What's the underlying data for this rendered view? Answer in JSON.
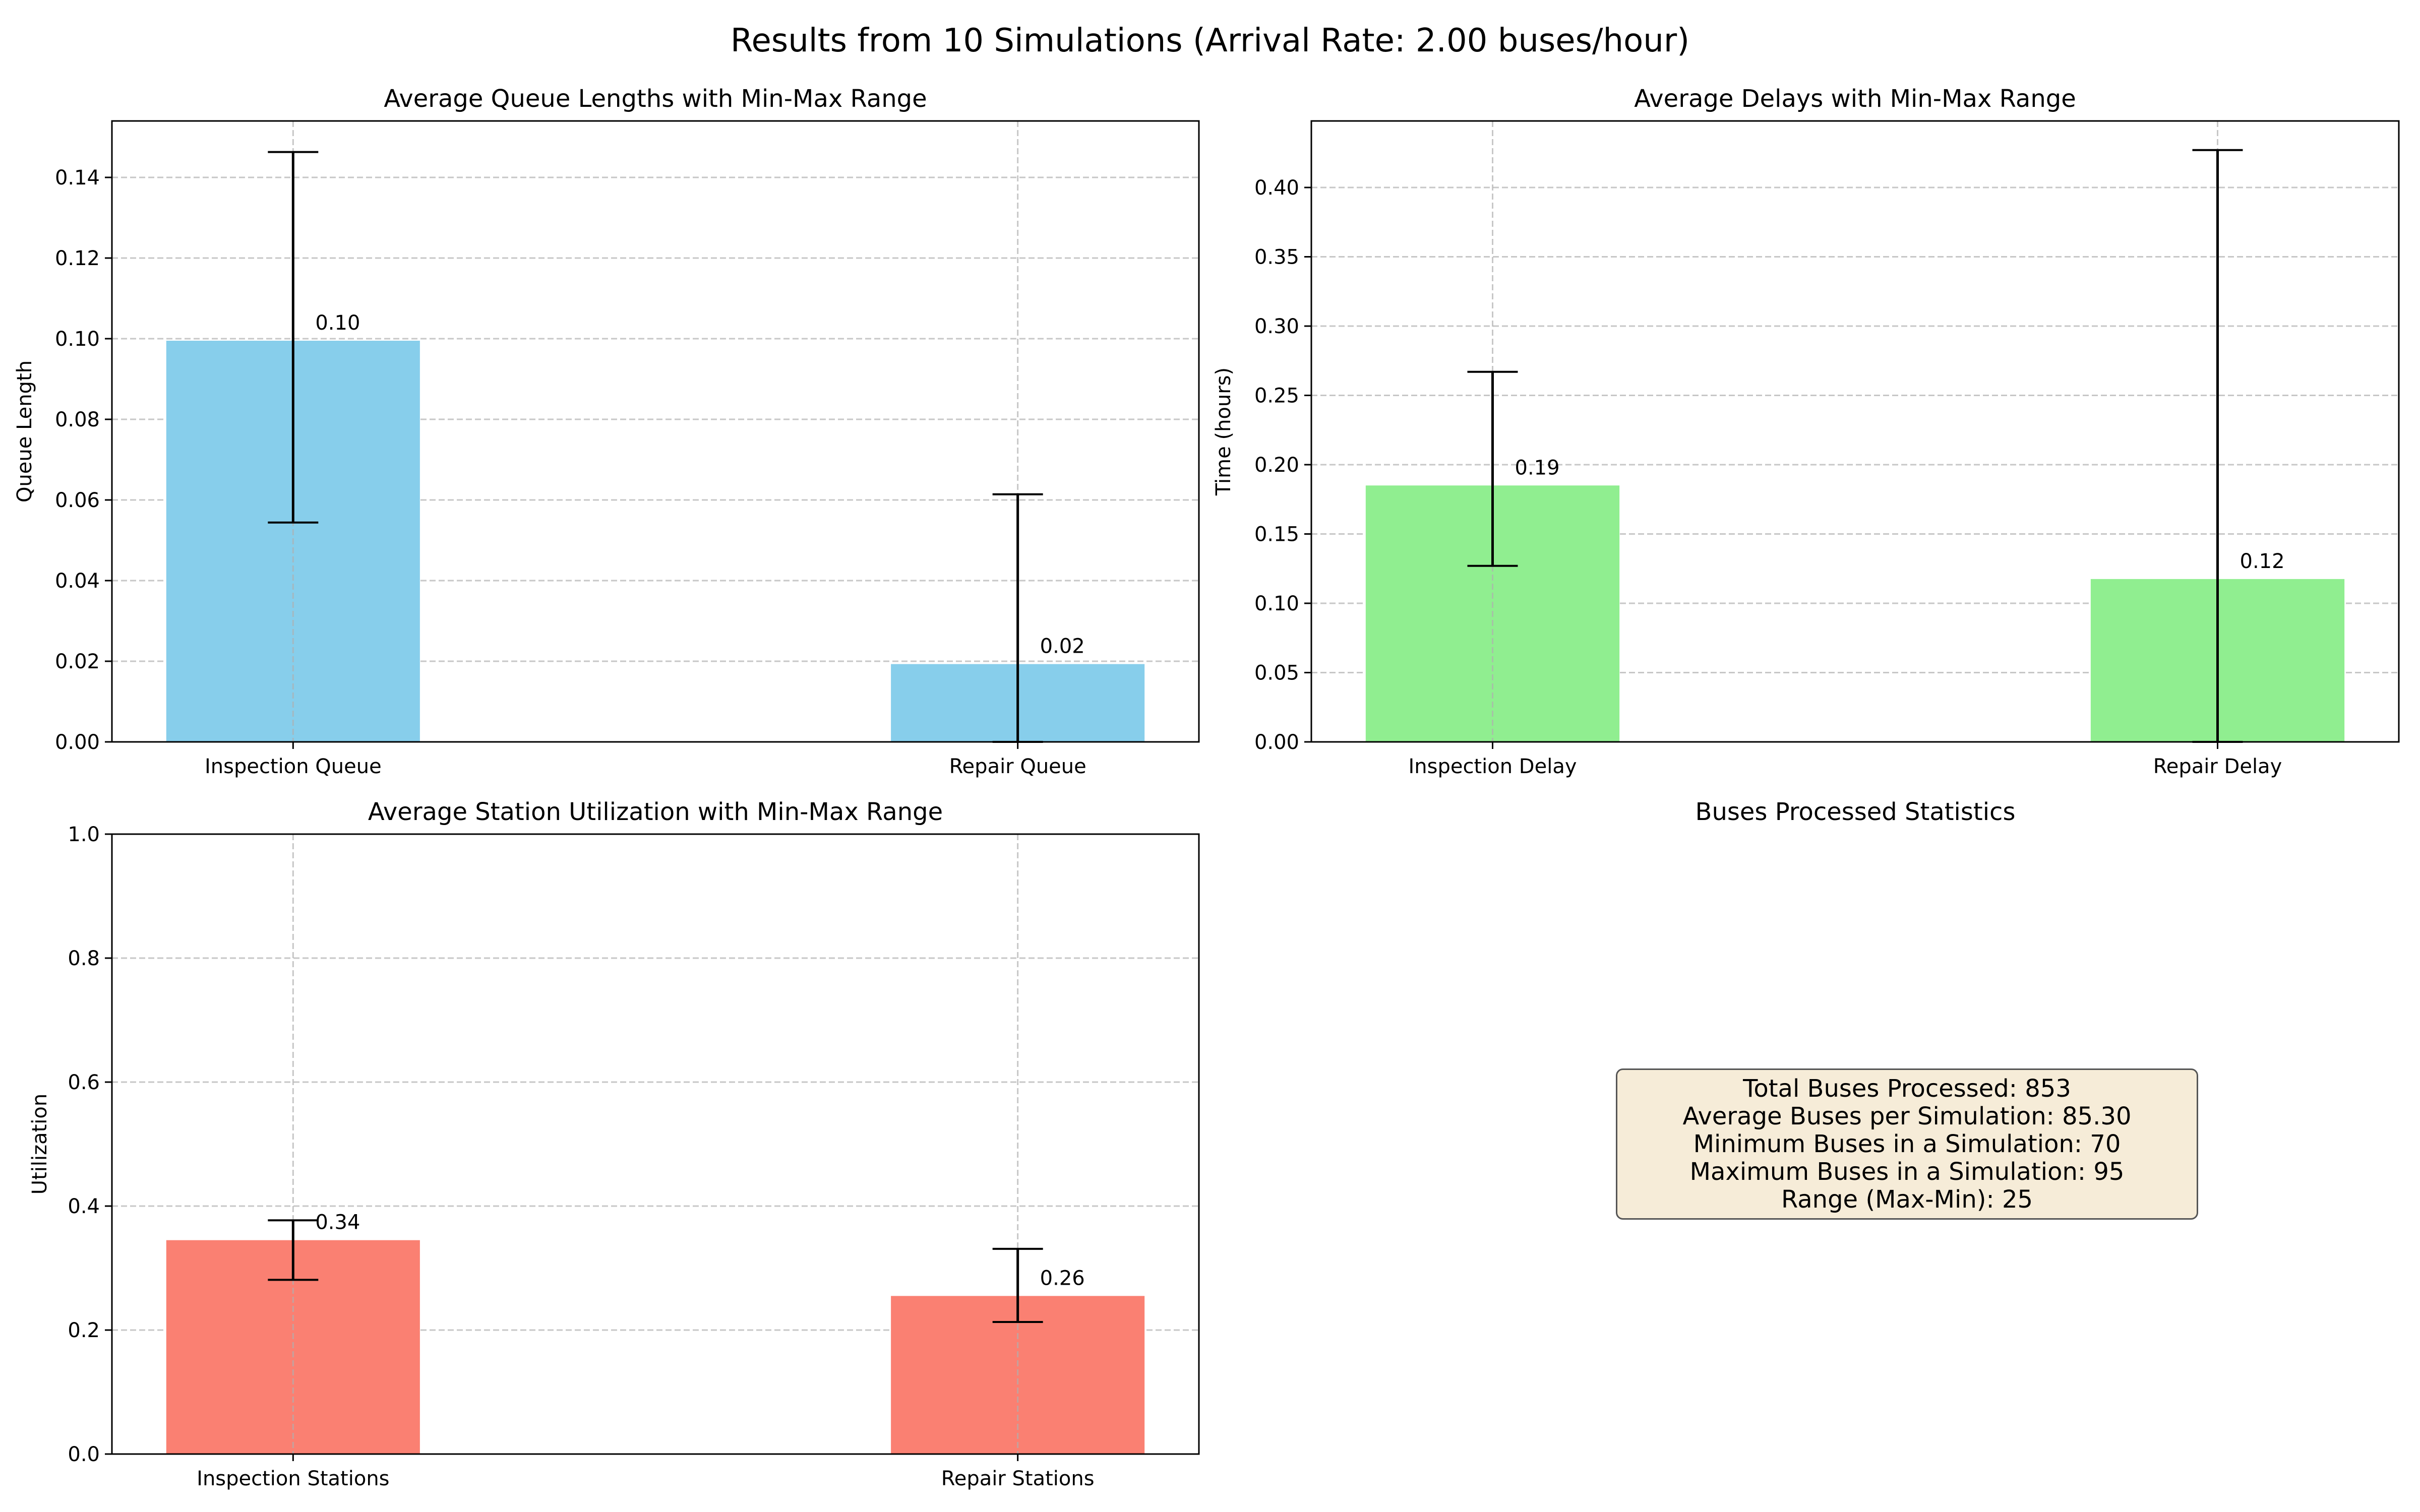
{
  "suptitle": "Results from 10 Simulations (Arrival Rate: 2.00 buses/hour)",
  "chart_data": [
    {
      "type": "bar",
      "title": "Average Queue Lengths with Min-Max Range",
      "xlabel": "",
      "ylabel": "Queue Length",
      "categories": [
        "Inspection Queue",
        "Repair Queue"
      ],
      "values": [
        0.0995,
        0.0193
      ],
      "value_labels": [
        "0.10",
        "0.02"
      ],
      "min": [
        0.0544,
        0.0
      ],
      "max": [
        0.1463,
        0.0614
      ],
      "ylim": [
        0,
        0.154
      ],
      "yticks": [
        0,
        0.02,
        0.04,
        0.06,
        0.08,
        0.1,
        0.12,
        0.14
      ],
      "ytick_labels": [
        "0.00",
        "0.02",
        "0.04",
        "0.06",
        "0.08",
        "0.10",
        "0.12",
        "0.14"
      ],
      "color": "#87ceeb",
      "grid": true
    },
    {
      "type": "bar",
      "title": "Average Delays with Min-Max Range",
      "xlabel": "",
      "ylabel": "Time (hours)",
      "categories": [
        "Inspection Delay",
        "Repair Delay"
      ],
      "values": [
        0.185,
        0.1175
      ],
      "value_labels": [
        "0.19",
        "0.12"
      ],
      "min": [
        0.127,
        0.0
      ],
      "max": [
        0.267,
        0.427
      ],
      "ylim": [
        0,
        0.448
      ],
      "yticks": [
        0,
        0.05,
        0.1,
        0.15,
        0.2,
        0.25,
        0.3,
        0.35,
        0.4
      ],
      "ytick_labels": [
        "0.00",
        "0.05",
        "0.10",
        "0.15",
        "0.20",
        "0.25",
        "0.30",
        "0.35",
        "0.40"
      ],
      "color": "#90ee90",
      "grid": true
    },
    {
      "type": "bar",
      "title": "Average Station Utilization with Min-Max Range",
      "xlabel": "",
      "ylabel": "Utilization",
      "categories": [
        "Inspection Stations",
        "Repair Stations"
      ],
      "values": [
        0.345,
        0.255
      ],
      "value_labels": [
        "0.34",
        "0.26"
      ],
      "min": [
        0.281,
        0.213
      ],
      "max": [
        0.377,
        0.331
      ],
      "ylim": [
        0,
        1.0
      ],
      "yticks": [
        0,
        0.2,
        0.4,
        0.6,
        0.8,
        1.0
      ],
      "ytick_labels": [
        "0.0",
        "0.2",
        "0.4",
        "0.6",
        "0.8",
        "1.0"
      ],
      "color": "#fa8072",
      "grid": true
    }
  ],
  "stats": {
    "title": "Buses Processed Statistics",
    "lines": [
      "Total Buses Processed: 853",
      "Average Buses per Simulation: 85.30",
      "Minimum Buses in a Simulation: 70",
      "Maximum Buses in a Simulation: 95",
      "Range (Max-Min): 25"
    ]
  }
}
